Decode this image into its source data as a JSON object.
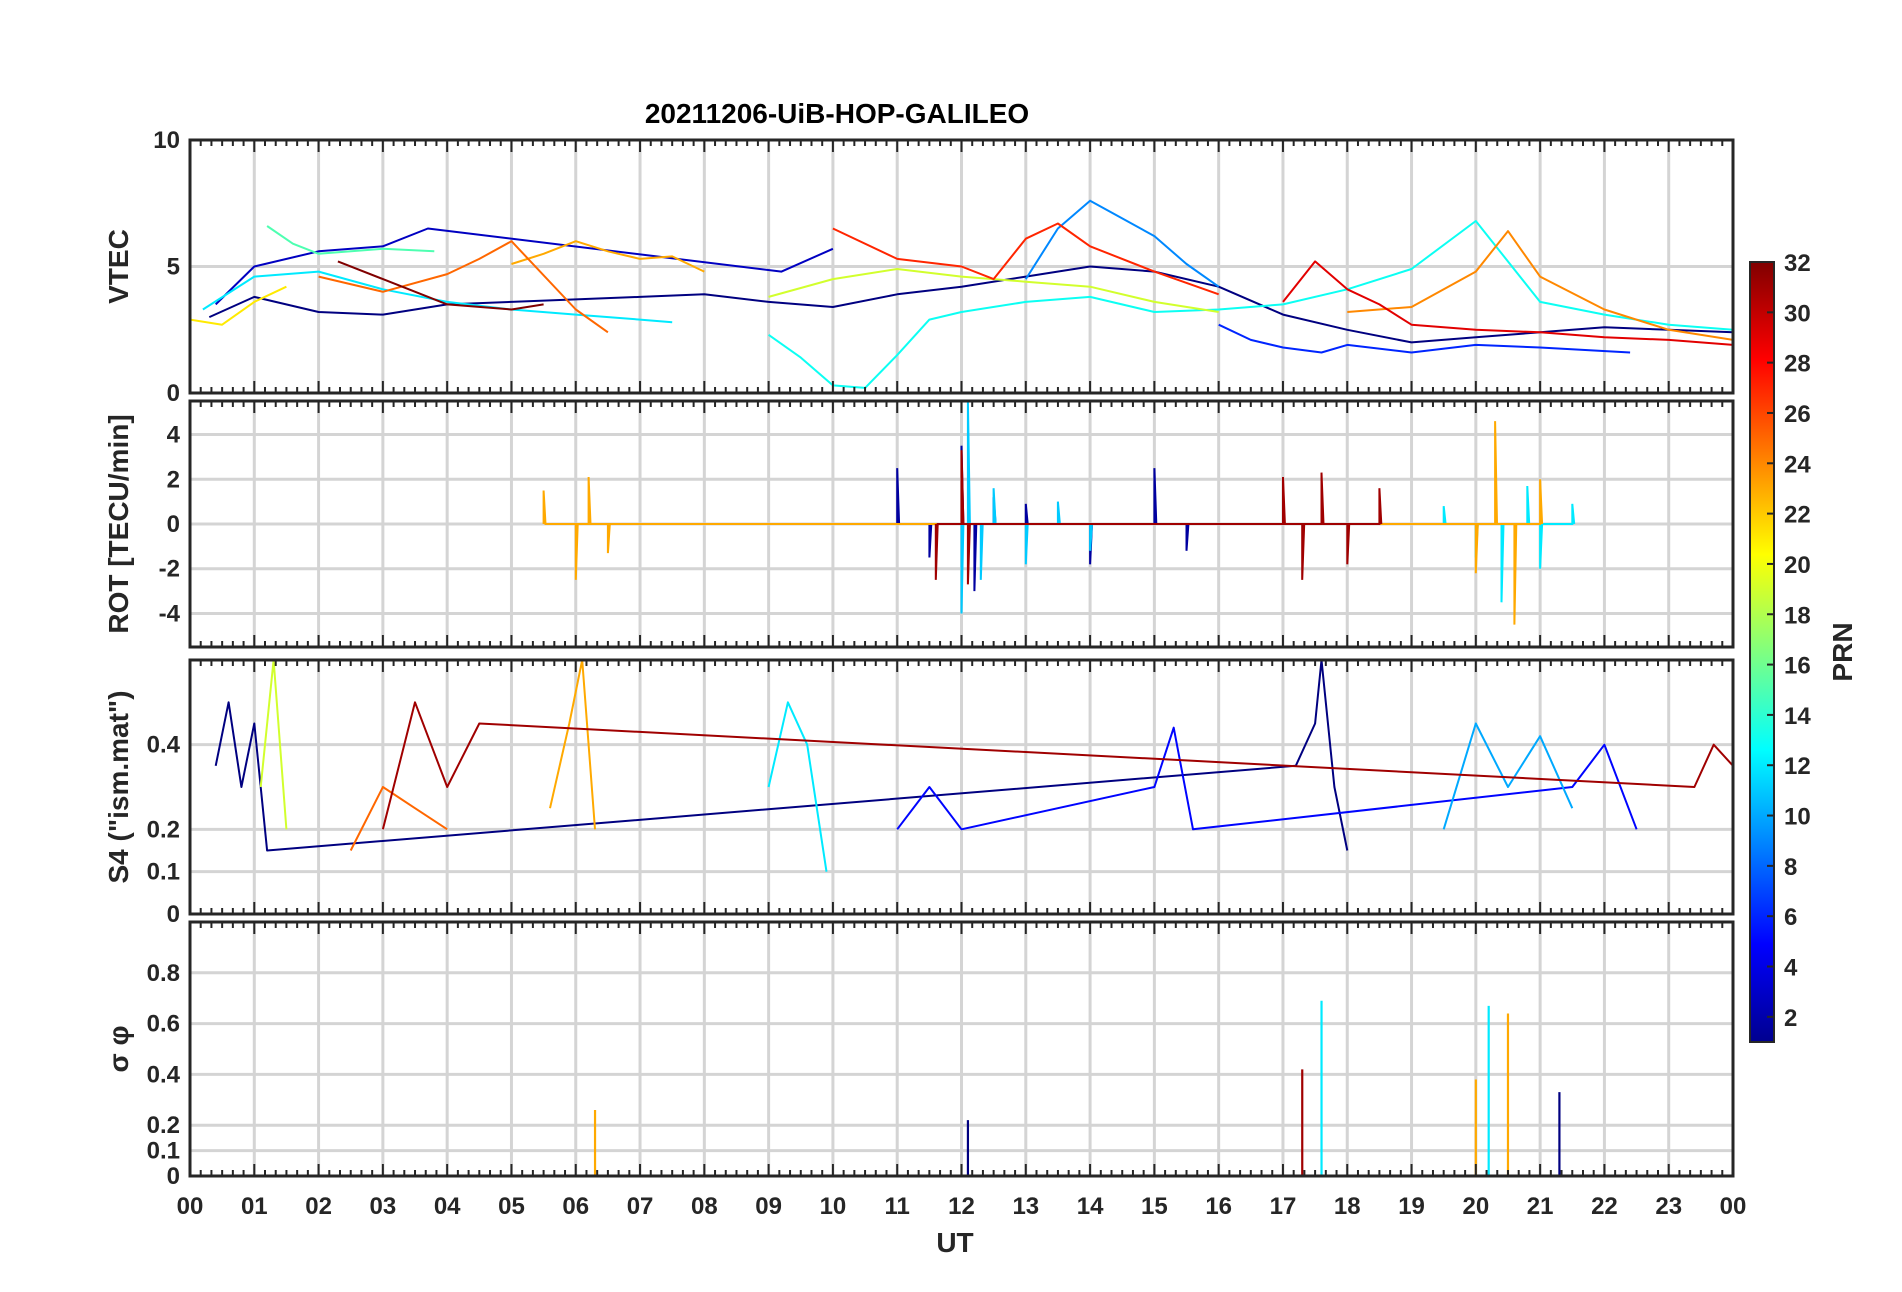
{
  "chart_data": {
    "type": "line",
    "title": "20211206-UiB-HOP-GALILEO",
    "xlabel": "UT",
    "x_tick_labels": [
      "00",
      "01",
      "02",
      "03",
      "04",
      "05",
      "06",
      "07",
      "08",
      "09",
      "10",
      "11",
      "12",
      "13",
      "14",
      "15",
      "16",
      "17",
      "18",
      "19",
      "20",
      "21",
      "22",
      "23",
      "00"
    ],
    "xlim_hours": [
      0,
      24
    ],
    "grid": true,
    "legend": "colorbar-right",
    "colorbar": {
      "label": "PRN",
      "range": [
        1,
        32
      ],
      "tick_labels": [
        "2",
        "4",
        "6",
        "8",
        "10",
        "12",
        "14",
        "16",
        "18",
        "20",
        "22",
        "24",
        "26",
        "28",
        "30",
        "32"
      ],
      "colormap": "jet"
    },
    "panels": [
      {
        "id": "vtec",
        "ylabel": "VTEC",
        "ylim": [
          0,
          10
        ],
        "y_ticks": [
          0,
          5,
          10
        ],
        "y_tick_labels": [
          "0",
          "5",
          "10"
        ],
        "series": [
          {
            "prn": 1,
            "x": [
              0.3,
              1,
              2,
              3,
              4,
              5,
              6,
              7,
              8,
              9,
              10,
              11,
              12,
              13,
              14,
              15,
              16,
              17,
              18,
              19,
              20,
              21,
              22,
              23,
              24
            ],
            "y": [
              3,
              3.8,
              3.2,
              3.1,
              3.5,
              3.6,
              3.7,
              3.8,
              3.9,
              3.6,
              3.4,
              3.9,
              4.2,
              4.6,
              5,
              4.8,
              4.2,
              3.1,
              2.5,
              2,
              2.2,
              2.4,
              2.6,
              2.5,
              2.4
            ]
          },
          {
            "prn": 3,
            "x": [
              0.4,
              1,
              2,
              3,
              3.7,
              9.2,
              10
            ],
            "y": [
              3.5,
              5,
              5.6,
              5.8,
              6.5,
              4.8,
              5.7
            ]
          },
          {
            "prn": 6,
            "x": [
              16,
              16.5,
              17,
              17.6,
              18,
              19,
              20,
              21,
              22.4
            ],
            "y": [
              2.7,
              2.1,
              1.8,
              1.6,
              1.9,
              1.6,
              1.9,
              1.8,
              1.6
            ]
          },
          {
            "prn": 9,
            "x": [
              13,
              13.5,
              14,
              14.5,
              15,
              15.5,
              16
            ],
            "y": [
              4.5,
              6.5,
              7.6,
              6.9,
              6.2,
              5.1,
              4.2
            ]
          },
          {
            "prn": 12,
            "x": [
              0.2,
              1,
              2,
              3,
              4,
              5,
              6,
              7,
              7.5
            ],
            "y": [
              3.3,
              4.6,
              4.8,
              4.1,
              3.6,
              3.3,
              3.1,
              2.9,
              2.8
            ]
          },
          {
            "prn": 13,
            "x": [
              9,
              9.5,
              10,
              10.5,
              11,
              11.5,
              12,
              13,
              14,
              15,
              16,
              17,
              18,
              19,
              20,
              21,
              22,
              23,
              24
            ],
            "y": [
              2.3,
              1.4,
              0.3,
              0.2,
              1.5,
              2.9,
              3.2,
              3.6,
              3.8,
              3.2,
              3.3,
              3.5,
              4.1,
              4.9,
              6.8,
              3.6,
              3.1,
              2.7,
              2.5
            ]
          },
          {
            "prn": 15,
            "x": [
              1.2,
              1.6,
              2,
              3,
              3.8
            ],
            "y": [
              6.6,
              5.9,
              5.5,
              5.7,
              5.6
            ]
          },
          {
            "prn": 19,
            "x": [
              9,
              10,
              11,
              12,
              13,
              14,
              15,
              16
            ],
            "y": [
              3.8,
              4.5,
              4.9,
              4.6,
              4.4,
              4.2,
              3.6,
              3.2
            ]
          },
          {
            "prn": 21,
            "x": [
              0,
              0.5,
              1,
              1.5
            ],
            "y": [
              2.9,
              2.7,
              3.6,
              4.2
            ]
          },
          {
            "prn": 23,
            "x": [
              5,
              5.5,
              6,
              6.5,
              7,
              7.5,
              8
            ],
            "y": [
              5.1,
              5.5,
              6,
              5.6,
              5.3,
              5.4,
              4.8
            ]
          },
          {
            "prn": 24,
            "x": [
              18,
              19,
              20,
              20.5,
              21,
              22,
              23,
              24
            ],
            "y": [
              3.2,
              3.4,
              4.8,
              6.4,
              4.6,
              3.3,
              2.5,
              2.1
            ]
          },
          {
            "prn": 25,
            "x": [
              2,
              3,
              4,
              4.5,
              5,
              6,
              6.5
            ],
            "y": [
              4.6,
              4,
              4.7,
              5.3,
              6,
              3.3,
              2.4
            ]
          },
          {
            "prn": 27,
            "x": [
              10,
              11,
              12,
              12.5,
              13,
              13.5,
              14,
              15,
              16
            ],
            "y": [
              6.5,
              5.3,
              5,
              4.5,
              6.1,
              6.7,
              5.8,
              4.8,
              3.9
            ]
          },
          {
            "prn": 29,
            "x": [
              17,
              17.5,
              18,
              18.5,
              19,
              20,
              21,
              22,
              23,
              24
            ],
            "y": [
              3.6,
              5.2,
              4.1,
              3.5,
              2.7,
              2.5,
              2.4,
              2.2,
              2.1,
              1.9
            ]
          },
          {
            "prn": 32,
            "x": [
              2.3,
              3,
              4,
              5,
              5.5
            ],
            "y": [
              5.2,
              4.5,
              3.5,
              3.3,
              3.5
            ]
          }
        ]
      },
      {
        "id": "rot",
        "ylabel": "ROT [TECU/min]",
        "ylim": [
          -5.5,
          5.5
        ],
        "y_ticks": [
          -4,
          -2,
          0,
          2,
          4
        ],
        "y_tick_labels": [
          "-4",
          "-2",
          "0",
          "2",
          "4"
        ],
        "series": [
          {
            "prn": 2,
            "x": [
              11,
              11.5,
              12,
              12.2,
              12.5,
              13,
              14,
              15,
              15.5
            ],
            "y": [
              2.5,
              -1.5,
              3.5,
              -3,
              1.2,
              0.9,
              -1.8,
              2.5,
              -1.2
            ]
          },
          {
            "prn": 11,
            "x": [
              12,
              12.1,
              12.3,
              12.5,
              13,
              13.5,
              14
            ],
            "y": [
              -4,
              5.5,
              -2.5,
              1.6,
              -1.8,
              1,
              -1.2
            ]
          },
          {
            "prn": 12,
            "x": [
              19.5,
              20,
              20.4,
              20.8,
              21,
              21.5
            ],
            "y": [
              0.8,
              -1.5,
              -3.5,
              1.7,
              -2,
              0.9
            ]
          },
          {
            "prn": 23,
            "x": [
              5.5,
              6,
              6.2,
              6.5,
              20,
              20.3,
              20.6,
              21
            ],
            "y": [
              1.5,
              -2.5,
              2.1,
              -1.3,
              -2.2,
              4.6,
              -4.5,
              2
            ]
          },
          {
            "prn": 31,
            "x": [
              11.6,
              12,
              12.1,
              17,
              17.3,
              17.6,
              18,
              18.5
            ],
            "y": [
              -2.5,
              3.3,
              -2.7,
              2.1,
              -2.5,
              2.3,
              -1.8,
              1.6
            ]
          }
        ]
      },
      {
        "id": "s4",
        "ylabel": "S4 (\"ism.mat\")",
        "ylim": [
          0,
          0.6
        ],
        "y_ticks": [
          0,
          0.1,
          0.2,
          0.4
        ],
        "y_tick_labels": [
          "0",
          "0.1",
          "0.2",
          "0.4"
        ],
        "series": [
          {
            "prn": 1,
            "x": [
              0.4,
              0.6,
              0.8,
              1,
              1.2,
              17.2,
              17.5,
              17.6,
              17.8,
              18
            ],
            "y": [
              0.35,
              0.5,
              0.3,
              0.45,
              0.15,
              0.35,
              0.45,
              0.6,
              0.3,
              0.15
            ]
          },
          {
            "prn": 5,
            "x": [
              11,
              11.5,
              12,
              15,
              15.3,
              15.6,
              21.5,
              22,
              22.5
            ],
            "y": [
              0.2,
              0.3,
              0.2,
              0.3,
              0.44,
              0.2,
              0.3,
              0.4,
              0.2
            ]
          },
          {
            "prn": 10,
            "x": [
              19.5,
              20,
              20.5,
              21,
              21.5
            ],
            "y": [
              0.2,
              0.45,
              0.3,
              0.42,
              0.25
            ]
          },
          {
            "prn": 12,
            "x": [
              9,
              9.3,
              9.6,
              9.9
            ],
            "y": [
              0.3,
              0.5,
              0.4,
              0.1
            ]
          },
          {
            "prn": 19,
            "x": [
              1.1,
              1.3,
              1.5
            ],
            "y": [
              0.3,
              0.6,
              0.2
            ]
          },
          {
            "prn": 23,
            "x": [
              5.6,
              5.9,
              6.1,
              6.3
            ],
            "y": [
              0.25,
              0.45,
              0.6,
              0.2
            ]
          },
          {
            "prn": 25,
            "x": [
              2.5,
              3,
              3.5,
              4
            ],
            "y": [
              0.15,
              0.3,
              0.25,
              0.2
            ]
          },
          {
            "prn": 31,
            "x": [
              3,
              3.5,
              4,
              4.5,
              23.4,
              23.7,
              24
            ],
            "y": [
              0.2,
              0.5,
              0.3,
              0.45,
              0.3,
              0.4,
              0.35
            ]
          }
        ]
      },
      {
        "id": "sigma",
        "ylabel": "σ φ",
        "ylim": [
          0,
          1
        ],
        "y_ticks": [
          0,
          0.1,
          0.2,
          0.4,
          0.6,
          0.8
        ],
        "y_tick_labels": [
          "0",
          "0.1",
          "0.2",
          "0.4",
          "0.6",
          "0.8"
        ],
        "series": [
          {
            "prn": 1,
            "x": [
              12.1,
              21.3
            ],
            "y": [
              0.22,
              0.33
            ]
          },
          {
            "prn": 12,
            "x": [
              17.6,
              20.2
            ],
            "y": [
              0.69,
              0.67
            ]
          },
          {
            "prn": 23,
            "x": [
              6.3,
              20,
              20.5
            ],
            "y": [
              0.26,
              0.38,
              0.64
            ]
          },
          {
            "prn": 31,
            "x": [
              17.3
            ],
            "y": [
              0.42
            ]
          }
        ]
      }
    ]
  }
}
